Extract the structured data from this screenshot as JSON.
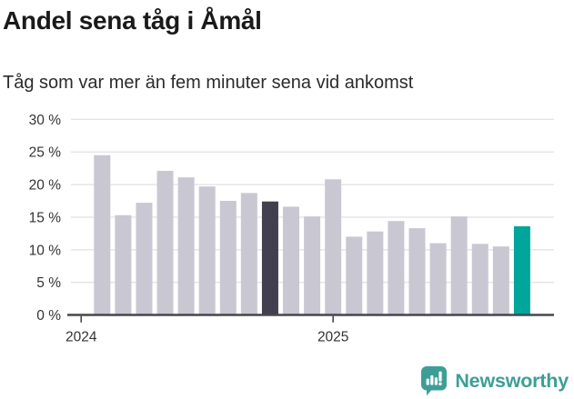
{
  "chart_data": {
    "type": "bar",
    "title": "Andel sena tåg i Åmål",
    "subtitle": "Tåg som var mer än fem minuter sena vid ankomst",
    "unit": "percent",
    "categories": [
      "2024-02",
      "2024-03",
      "2024-04",
      "2024-05",
      "2024-06",
      "2024-07",
      "2024-08",
      "2024-09",
      "2024-10",
      "2024-11",
      "2024-12",
      "2025-01",
      "2025-02",
      "2025-03",
      "2025-04",
      "2025-05",
      "2025-06",
      "2025-07",
      "2025-08",
      "2025-09",
      "2025-10"
    ],
    "values": [
      24.5,
      15.3,
      17.2,
      22.1,
      21.1,
      19.7,
      17.5,
      18.7,
      17.4,
      16.6,
      15.1,
      20.8,
      12.0,
      12.8,
      14.4,
      13.3,
      11.0,
      15.1,
      10.9,
      10.5,
      13.6
    ],
    "ylim": [
      0,
      30
    ],
    "y_ticks": [
      0,
      5,
      10,
      15,
      20,
      25,
      30
    ],
    "y_tick_format": "{v} %",
    "x_ticks": [
      {
        "label": "2024",
        "band_index": -1
      },
      {
        "label": "2025",
        "band_index": 11
      }
    ],
    "grid": true,
    "legend": "none",
    "highlight_previous_year_index": 8,
    "highlight_latest_index": 20,
    "colors": {
      "bar_default": "#c9c7d2",
      "bar_previous_year": "#423f4e",
      "bar_latest": "#00a69b",
      "gridline": "#e4e3e7",
      "axis": "#47464f",
      "tick_label": "#333333"
    }
  },
  "footer": {
    "brand": "Newsworthy",
    "brand_color": "#3e9e97"
  }
}
